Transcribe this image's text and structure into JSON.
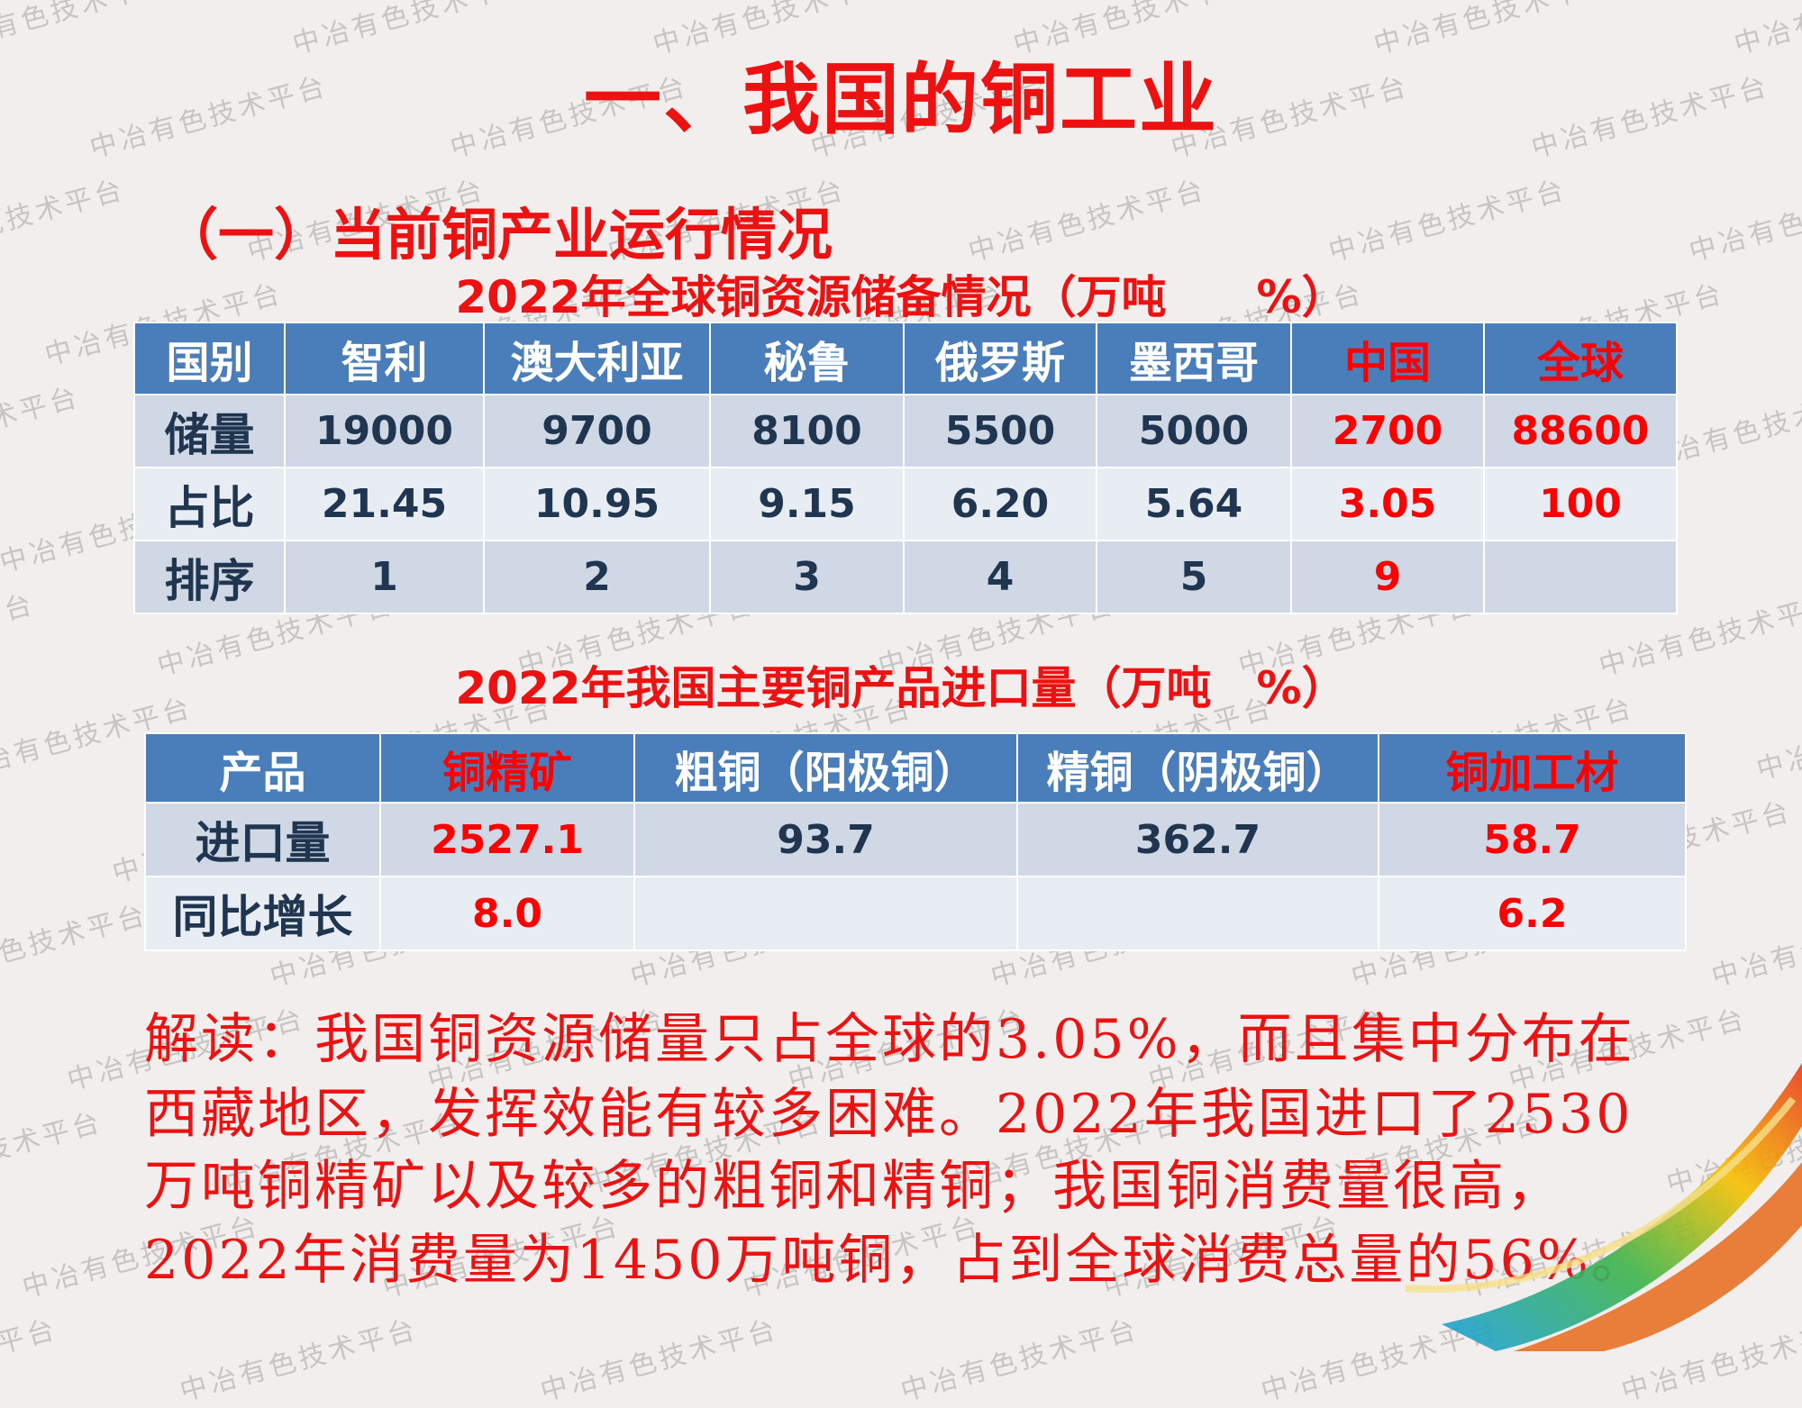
{
  "title": "一、我国的铜工业",
  "subtitle": "（一）当前铜产业运行情况",
  "reserves_table": {
    "title": "2022年全球铜资源储备情况（万吨　　%）",
    "headers": [
      "国别",
      "智利",
      "澳大利亚",
      "秘鲁",
      "俄罗斯",
      "墨西哥",
      "中国",
      "全球"
    ],
    "rows": [
      {
        "label": "储量",
        "values": [
          "19000",
          "9700",
          "8100",
          "5500",
          "5000",
          "2700",
          "88600"
        ]
      },
      {
        "label": "占比",
        "values": [
          "21.45",
          "10.95",
          "9.15",
          "6.20",
          "5.64",
          "3.05",
          "100"
        ]
      },
      {
        "label": "排序",
        "values": [
          "1",
          "2",
          "3",
          "4",
          "5",
          "9",
          ""
        ]
      }
    ]
  },
  "imports_table": {
    "title": "2022年我国主要铜产品进口量（万吨　%）",
    "headers": [
      "产品",
      "铜精矿",
      "粗铜（阳极铜）",
      "精铜（阴极铜）",
      "铜加工材"
    ],
    "rows": [
      {
        "label": "进口量",
        "values": [
          "2527.1",
          "93.7",
          "362.7",
          "58.7"
        ]
      },
      {
        "label": "同比增长",
        "values": [
          "8.0",
          "",
          "",
          "6.2"
        ]
      }
    ]
  },
  "interpretation": [
    "解读：我国铜资源储量只占全球的3.05%，而且集中分布在",
    "西藏地区，发挥效能有较多困难。2022年我国进口了2530",
    "万吨铜精矿以及较多的粗铜和精铜；我国铜消费量很高，",
    "2022年消费量为1450万吨铜，占到全球消费总量的56%。"
  ],
  "watermark": "中冶有色技术平台",
  "colors": {
    "accent_red": "#ee1111",
    "header_blue": "#4a7ebb",
    "row_dark": "#d0d8e6",
    "row_light": "#e8ecf3",
    "text_dark": "#1f3550"
  }
}
